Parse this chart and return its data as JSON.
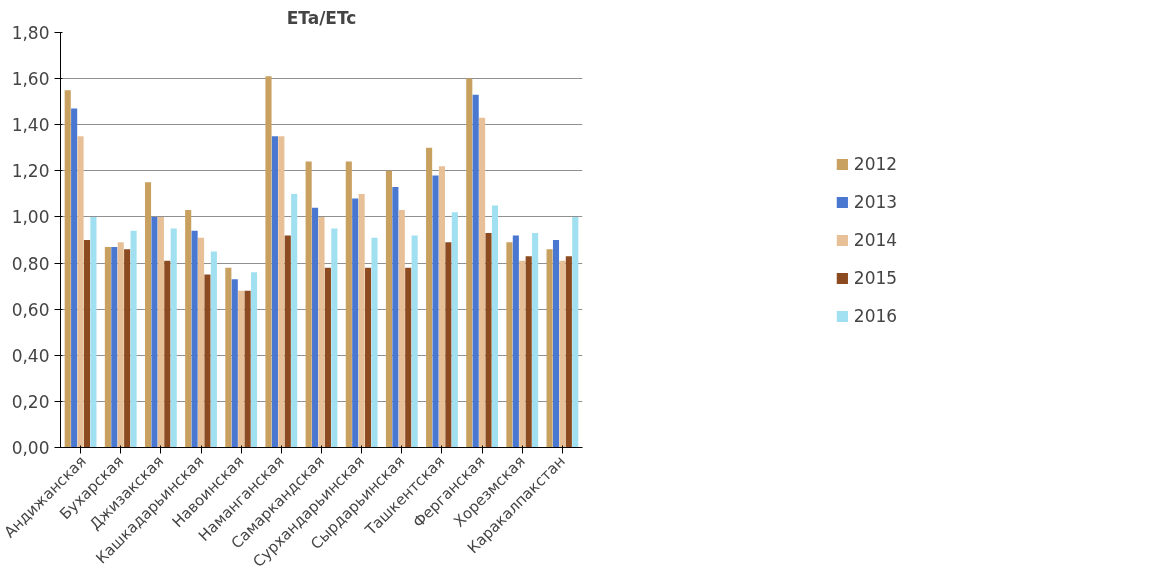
{
  "chart_data": {
    "type": "bar",
    "title": "ETa/ETc",
    "categories": [
      "Андижанская",
      "Бухарская",
      "Джизакская",
      "Кашкадарьинская",
      "Навоинская",
      "Наманганская",
      "Самаркандская",
      "Сурхандарьинская",
      "Сырдарьинская",
      "Ташкентская",
      "Ферганская",
      "Хорезмская",
      "Каракалпакстан"
    ],
    "series": [
      {
        "name": "2012",
        "color": "#c8a060",
        "values": [
          1.55,
          0.87,
          1.15,
          1.03,
          0.78,
          1.61,
          1.24,
          1.24,
          1.2,
          1.3,
          1.6,
          0.89,
          0.86
        ]
      },
      {
        "name": "2013",
        "color": "#4a78d0",
        "values": [
          1.47,
          0.87,
          1.0,
          0.94,
          0.73,
          1.35,
          1.04,
          1.08,
          1.13,
          1.18,
          1.53,
          0.92,
          0.9
        ]
      },
      {
        "name": "2014",
        "color": "#e8c098",
        "values": [
          1.35,
          0.89,
          1.0,
          0.91,
          0.68,
          1.35,
          1.0,
          1.1,
          1.03,
          1.22,
          1.43,
          0.81,
          0.81
        ]
      },
      {
        "name": "2015",
        "color": "#8b4a20",
        "values": [
          0.9,
          0.86,
          0.81,
          0.75,
          0.68,
          0.92,
          0.78,
          0.78,
          0.78,
          0.89,
          0.93,
          0.83,
          0.83
        ]
      },
      {
        "name": "2016",
        "color": "#a0e0f0",
        "values": [
          1.0,
          0.94,
          0.95,
          0.85,
          0.76,
          1.1,
          0.95,
          0.91,
          0.92,
          1.02,
          1.05,
          0.93,
          1.0
        ]
      }
    ],
    "ylim": [
      0,
      1.8
    ],
    "yticks": [
      {
        "value": 0,
        "label": "0,00"
      },
      {
        "value": 0.2,
        "label": "0,20"
      },
      {
        "value": 0.4,
        "label": "0,40"
      },
      {
        "value": 0.6,
        "label": "0,60"
      },
      {
        "value": 0.8,
        "label": "0,80"
      },
      {
        "value": 1.0,
        "label": "1,00"
      },
      {
        "value": 1.2,
        "label": "1,20"
      },
      {
        "value": 1.4,
        "label": "1,40"
      },
      {
        "value": 1.6,
        "label": "1,60"
      },
      {
        "value": 1.8,
        "label": "1,80"
      }
    ],
    "grid": "y",
    "legend": "right"
  }
}
